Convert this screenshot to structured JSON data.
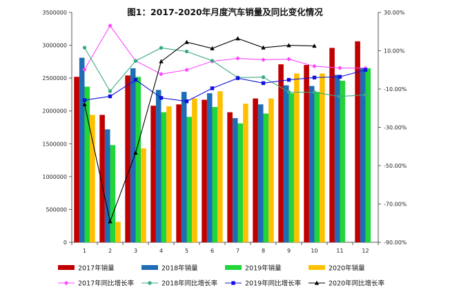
{
  "chart_data": {
    "type": "bar",
    "title": "图1：2017-2020年月度汽车销量及同比变化情况",
    "categories": [
      "1",
      "2",
      "3",
      "4",
      "5",
      "6",
      "7",
      "8",
      "9",
      "10",
      "11",
      "12"
    ],
    "y_left": {
      "min": 0,
      "max": 3500000,
      "step": 500000,
      "ticks": [
        "0",
        "500000",
        "1000000",
        "1500000",
        "2000000",
        "2500000",
        "3000000",
        "3500000"
      ]
    },
    "y_right": {
      "min": -90,
      "max": 30,
      "step": 20,
      "ticks": [
        "-90.00%",
        "-70.00%",
        "-50.00%",
        "-30.00%",
        "-10.00%",
        "10.00%",
        "30.00%"
      ]
    },
    "bar_series": [
      {
        "name": "2017年销量",
        "color": "#c00000",
        "values": [
          2520000,
          1940000,
          2540000,
          2080000,
          2100000,
          2170000,
          1980000,
          2190000,
          2710000,
          2700000,
          2960000,
          3060000
        ]
      },
      {
        "name": "2018年销量",
        "color": "#1f6eb5",
        "values": [
          2810000,
          1720000,
          2650000,
          2320000,
          2290000,
          2270000,
          1890000,
          2100000,
          2390000,
          2380000,
          2550000,
          2660000
        ]
      },
      {
        "name": "2019年销量",
        "color": "#22d63a",
        "values": [
          2370000,
          1480000,
          2520000,
          1980000,
          1910000,
          2060000,
          1810000,
          1960000,
          2270000,
          2290000,
          2460000,
          2650000
        ]
      },
      {
        "name": "2020年销量",
        "color": "#ffc000",
        "values": [
          1940000,
          310000,
          1430000,
          2070000,
          2190000,
          2300000,
          2110000,
          2190000,
          2570000,
          2570000,
          null,
          null
        ]
      }
    ],
    "line_series": [
      {
        "name": "2017年同比增长率",
        "color": "#ff44ff",
        "marker": "diamond",
        "values": [
          0.2,
          23.1,
          4.7,
          -2.2,
          0.0,
          4.5,
          6.0,
          5.3,
          5.6,
          1.9,
          1.0,
          0.9
        ]
      },
      {
        "name": "2018年同比增长率",
        "color": "#3aaa80",
        "marker": "circle",
        "values": [
          11.6,
          -11.1,
          4.7,
          11.5,
          9.6,
          4.8,
          -4.0,
          -3.8,
          -11.6,
          -11.7,
          -13.9,
          -13.0
        ]
      },
      {
        "name": "2019年同比增长率",
        "color": "#1010e0",
        "marker": "square",
        "values": [
          -15.8,
          -13.8,
          -5.2,
          -14.6,
          -16.4,
          -9.6,
          -4.3,
          -6.9,
          -5.2,
          -4.0,
          -3.6,
          0.0
        ]
      },
      {
        "name": "2020年同比增长率",
        "color": "#000000",
        "marker": "triangle",
        "values": [
          -18.0,
          -79.1,
          -43.3,
          4.4,
          14.5,
          11.2,
          16.4,
          11.6,
          12.8,
          12.5,
          null,
          null
        ]
      }
    ],
    "legend_position": "bottom",
    "grid": false
  }
}
